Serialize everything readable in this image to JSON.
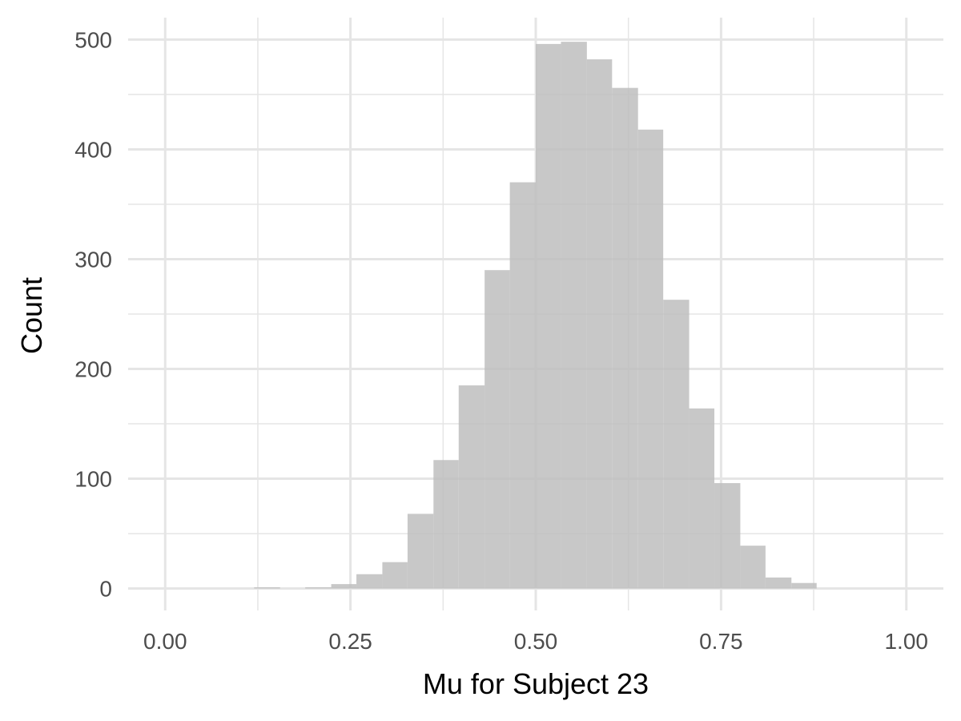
{
  "chart_data": {
    "type": "bar",
    "subtype": "histogram",
    "xlabel": "Mu for Subject 23",
    "ylabel": "Count",
    "xlim": [
      -0.05,
      1.05
    ],
    "ylim": [
      -20,
      520
    ],
    "x_ticks": [
      {
        "value": 0.0,
        "label": "0.00"
      },
      {
        "value": 0.25,
        "label": "0.25"
      },
      {
        "value": 0.5,
        "label": "0.50"
      },
      {
        "value": 0.75,
        "label": "0.75"
      },
      {
        "value": 1.0,
        "label": "1.00"
      }
    ],
    "y_ticks": [
      {
        "value": 0,
        "label": "0"
      },
      {
        "value": 100,
        "label": "100"
      },
      {
        "value": 200,
        "label": "200"
      },
      {
        "value": 300,
        "label": "300"
      },
      {
        "value": 400,
        "label": "400"
      },
      {
        "value": 500,
        "label": "500"
      }
    ],
    "x_minor_grid": [
      0.125,
      0.375,
      0.625,
      0.875
    ],
    "y_minor_grid": [
      50,
      150,
      250,
      350,
      450
    ],
    "grid": true,
    "bar_color": "#bebebe",
    "bar_opacity": 0.85,
    "grid_color": "#e5e5e5",
    "bins": [
      {
        "x0": 0.12,
        "x1": 0.155,
        "count": 1
      },
      {
        "x0": 0.155,
        "x1": 0.189,
        "count": 0
      },
      {
        "x0": 0.189,
        "x1": 0.224,
        "count": 1
      },
      {
        "x0": 0.224,
        "x1": 0.258,
        "count": 4
      },
      {
        "x0": 0.258,
        "x1": 0.293,
        "count": 13
      },
      {
        "x0": 0.293,
        "x1": 0.327,
        "count": 24
      },
      {
        "x0": 0.327,
        "x1": 0.362,
        "count": 68
      },
      {
        "x0": 0.362,
        "x1": 0.396,
        "count": 117
      },
      {
        "x0": 0.396,
        "x1": 0.431,
        "count": 185
      },
      {
        "x0": 0.431,
        "x1": 0.465,
        "count": 290
      },
      {
        "x0": 0.465,
        "x1": 0.5,
        "count": 370
      },
      {
        "x0": 0.5,
        "x1": 0.534,
        "count": 496
      },
      {
        "x0": 0.534,
        "x1": 0.569,
        "count": 498
      },
      {
        "x0": 0.569,
        "x1": 0.603,
        "count": 482
      },
      {
        "x0": 0.603,
        "x1": 0.638,
        "count": 456
      },
      {
        "x0": 0.638,
        "x1": 0.672,
        "count": 418
      },
      {
        "x0": 0.672,
        "x1": 0.707,
        "count": 263
      },
      {
        "x0": 0.707,
        "x1": 0.741,
        "count": 164
      },
      {
        "x0": 0.741,
        "x1": 0.776,
        "count": 96
      },
      {
        "x0": 0.776,
        "x1": 0.81,
        "count": 39
      },
      {
        "x0": 0.81,
        "x1": 0.845,
        "count": 10
      },
      {
        "x0": 0.845,
        "x1": 0.879,
        "count": 5
      }
    ]
  }
}
